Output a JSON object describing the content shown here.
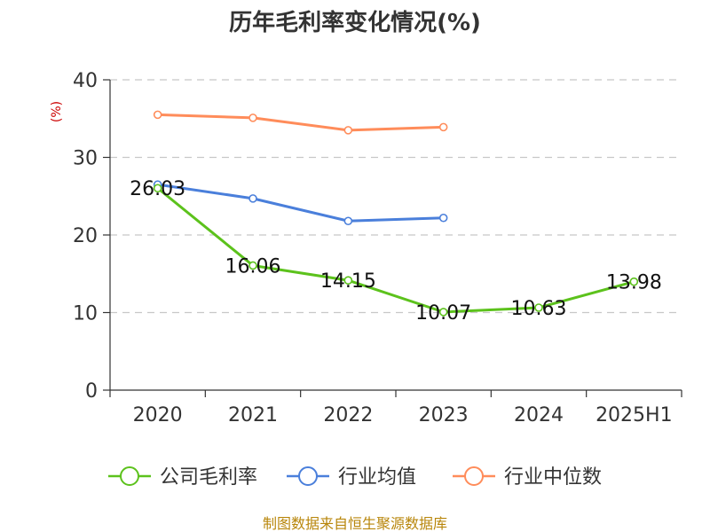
{
  "chart_data": {
    "type": "line",
    "title": "历年毛利率变化情况(%)",
    "ylabel": "(%)",
    "xlabel": "",
    "categories": [
      "2020",
      "2021",
      "2022",
      "2023",
      "2024",
      "2025H1"
    ],
    "ylim": [
      0,
      40
    ],
    "yticks": [
      0,
      10,
      20,
      30,
      40
    ],
    "grid": true,
    "legend_position": "bottom",
    "series": [
      {
        "name": "公司毛利率",
        "color": "#5cc21c",
        "values": [
          26.03,
          16.06,
          14.15,
          10.07,
          10.63,
          13.98
        ],
        "labels": [
          "26.03",
          "16.06",
          "14.15",
          "10.07",
          "10.63",
          "13.98"
        ]
      },
      {
        "name": "行业均值",
        "color": "#4a7fdb",
        "values": [
          26.5,
          24.7,
          21.8,
          22.2,
          null,
          null
        ]
      },
      {
        "name": "行业中位数",
        "color": "#ff8c5a",
        "values": [
          35.5,
          35.1,
          33.5,
          33.9,
          null,
          null
        ]
      }
    ]
  },
  "source": "制图数据来自恒生聚源数据库"
}
